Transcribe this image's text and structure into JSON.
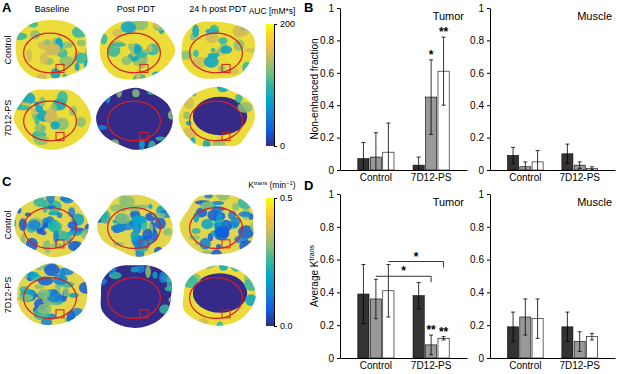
{
  "chart_data": [
    {
      "type": "bar",
      "title": "Tumor",
      "y_label": [
        {
          "text": "Non-enhanced fraction"
        }
      ],
      "categories": [
        "Control",
        "7D12-PS"
      ],
      "ylim": [
        0,
        1
      ],
      "yticks": [
        0,
        0.2,
        0.4,
        0.6,
        0.8,
        1
      ],
      "series": [
        {
          "color": "#333333",
          "values": [
            0.07,
            0.03
          ],
          "errors": [
            0.1,
            0.05
          ],
          "significance": [
            null,
            null
          ]
        },
        {
          "color": "#999999",
          "values": [
            0.08,
            0.45
          ],
          "errors": [
            0.15,
            0.23
          ],
          "significance": [
            null,
            "*"
          ]
        },
        {
          "color": "#ffffff",
          "values": [
            0.11,
            0.61
          ],
          "errors": [
            0.18,
            0.21
          ],
          "significance": [
            null,
            "**"
          ]
        }
      ]
    },
    {
      "type": "bar",
      "title": "Muscle",
      "categories": [
        "Control",
        "7D12-PS"
      ],
      "ylim": [
        0,
        1
      ],
      "yticks": [
        0,
        0.2,
        0.4,
        0.6,
        0.8,
        1
      ],
      "series": [
        {
          "color": "#333333",
          "values": [
            0.09,
            0.1
          ],
          "errors": [
            0.05,
            0.06
          ]
        },
        {
          "color": "#999999",
          "values": [
            0.02,
            0.03
          ],
          "errors": [
            0.03,
            0.02
          ]
        },
        {
          "color": "#ffffff",
          "values": [
            0.05,
            0.01
          ],
          "errors": [
            0.07,
            0.01
          ]
        }
      ]
    },
    {
      "type": "bar",
      "title": "Tumor",
      "y_label": [
        {
          "text": "Average K"
        },
        {
          "text": "trans",
          "superscript": true
        }
      ],
      "categories": [
        "Control",
        "7D12-PS"
      ],
      "ylim": [
        0,
        1
      ],
      "yticks": [
        0,
        0.2,
        0.4,
        0.6,
        0.8,
        1
      ],
      "series": [
        {
          "color": "#333333",
          "values": [
            0.39,
            0.38
          ],
          "errors": [
            0.18,
            0.08
          ],
          "significance": [
            null,
            null
          ]
        },
        {
          "color": "#999999",
          "values": [
            0.36,
            0.08
          ],
          "errors": [
            0.12,
            0.06
          ],
          "significance": [
            null,
            "**"
          ]
        },
        {
          "color": "#ffffff",
          "values": [
            0.41,
            0.12
          ],
          "errors": [
            0.16,
            0.01
          ],
          "significance": [
            null,
            "**"
          ]
        }
      ],
      "comparisons": [
        {
          "series": 2,
          "text": "*"
        },
        {
          "series": 1,
          "text": "*"
        }
      ]
    },
    {
      "type": "bar",
      "title": "Muscle",
      "categories": [
        "Control",
        "7D12-PS"
      ],
      "ylim": [
        0,
        1
      ],
      "yticks": [
        0,
        0.2,
        0.4,
        0.6,
        0.8,
        1
      ],
      "series": [
        {
          "color": "#333333",
          "values": [
            0.19,
            0.19
          ],
          "errors": [
            0.09,
            0.09
          ]
        },
        {
          "color": "#999999",
          "values": [
            0.25,
            0.1
          ],
          "errors": [
            0.11,
            0.06
          ]
        },
        {
          "color": "#ffffff",
          "values": [
            0.24,
            0.13
          ],
          "errors": [
            0.12,
            0.02
          ]
        }
      ]
    }
  ],
  "bar_panel_labels": [
    "B",
    "D"
  ],
  "image_panels": [
    {
      "panel_label": "A",
      "columns": [
        "Baseline",
        "Post PDT",
        "24 h post PDT"
      ],
      "rows": [
        "Control",
        "7D12-PS"
      ],
      "colorbar": {
        "label": [
          {
            "text": "AUC [mM*s]"
          }
        ],
        "range": [
          0,
          200
        ],
        "ticks": [
          200,
          0
        ]
      }
    },
    {
      "panel_label": "C",
      "rows": [
        "Control",
        "7D12-PS"
      ],
      "colorbar": {
        "label": [
          {
            "text": "K"
          },
          {
            "text": "trans",
            "superscript": true
          },
          {
            "text": " (min"
          },
          {
            "text": "−1",
            "superscript": true
          },
          {
            "text": ")"
          }
        ],
        "range": [
          0,
          0.5
        ],
        "ticks": [
          0.5,
          {
            "value": 0,
            "label": "0.0"
          }
        ]
      }
    }
  ]
}
